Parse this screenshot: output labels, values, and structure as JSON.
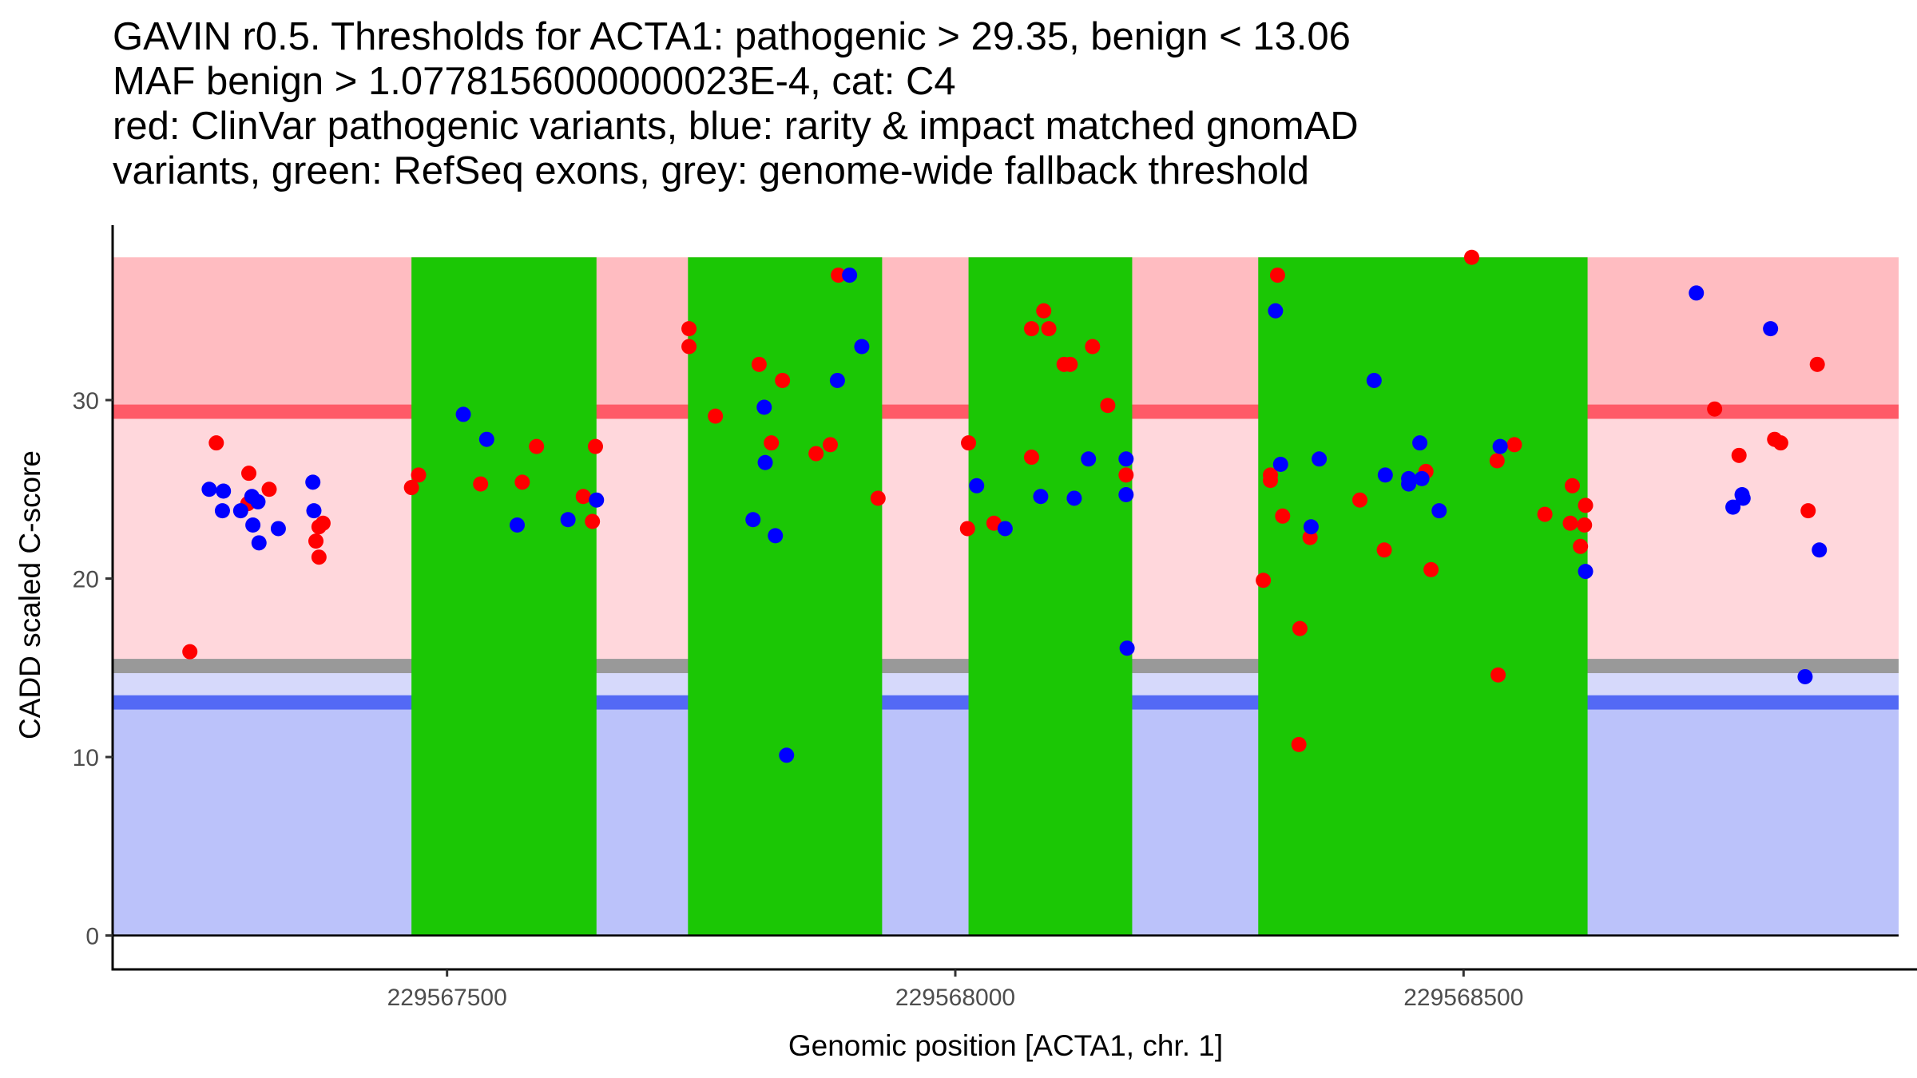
{
  "chart_data": {
    "type": "scatter",
    "title_lines": [
      "GAVIN r0.5. Thresholds for ACTA1: pathogenic > 29.35, benign < 13.06",
      "MAF benign > 1.0778156000000023E-4, cat: C4",
      "red: ClinVar pathogenic variants, blue: rarity & impact matched gnomAD",
      "variants, green: RefSeq exons, grey: genome-wide fallback threshold"
    ],
    "xlabel": "Genomic position [ACTA1, chr. 1]",
    "ylabel": "CADD scaled C-score",
    "xlim": [
      229567171,
      229568928
    ],
    "ylim": [
      -1.9,
      39.8
    ],
    "x_ticks": [
      229567500,
      229568000,
      229568500
    ],
    "x_tick_labels": [
      "229567500",
      "229568000",
      "229568500"
    ],
    "y_ticks": [
      0,
      10,
      20,
      30
    ],
    "y_tick_labels": [
      "0",
      "10",
      "20",
      "30"
    ],
    "grid": false,
    "legend": "none",
    "thresholds": {
      "pathogenic": 29.35,
      "benign": 13.06,
      "genome_wide_fallback": 15.1,
      "region_top": 38.0,
      "region_bottom": 0
    },
    "colors": {
      "pathogenic_region": "#ffbcc1",
      "pathogenic_line": "#ff5a67",
      "vus_region": "#ffd7dc",
      "fallback_line": "#999999",
      "fallback_benign_region": "#d6d9fb",
      "benign_line": "#5369f5",
      "benign_region": "#bbc2fa",
      "exon": "#1bc705",
      "clinvar_point": "#ff0000",
      "gnomad_point": "#0000ff"
    },
    "exons": [
      {
        "start": 229567465,
        "end": 229567647
      },
      {
        "start": 229567737,
        "end": 229567928
      },
      {
        "start": 229568013,
        "end": 229568174
      },
      {
        "start": 229568298,
        "end": 229568622
      }
    ],
    "series": [
      {
        "name": "ClinVar pathogenic variants",
        "color": "#ff0000",
        "points": [
          [
            229567247,
            15.9
          ],
          [
            229567273,
            27.6
          ],
          [
            229567305,
            25.9
          ],
          [
            229567325,
            25.0
          ],
          [
            229567304,
            24.2
          ],
          [
            229567378,
            23.1
          ],
          [
            229567374,
            22.9
          ],
          [
            229567371,
            22.1
          ],
          [
            229567374,
            21.2
          ],
          [
            229567472,
            25.8
          ],
          [
            229567465,
            25.1
          ],
          [
            229567533,
            25.3
          ],
          [
            229567574,
            25.4
          ],
          [
            229567588,
            27.4
          ],
          [
            229567646,
            27.4
          ],
          [
            229567634,
            24.6
          ],
          [
            229567643,
            23.2
          ],
          [
            229567885,
            37.0
          ],
          [
            229567738,
            34.0
          ],
          [
            229567738,
            33.0
          ],
          [
            229567807,
            32.0
          ],
          [
            229567830,
            31.1
          ],
          [
            229567764,
            29.1
          ],
          [
            229567819,
            27.6
          ],
          [
            229567877,
            27.5
          ],
          [
            229567863,
            27.0
          ],
          [
            229567924,
            24.5
          ],
          [
            229568087,
            35.0
          ],
          [
            229568075,
            34.0
          ],
          [
            229568092,
            34.0
          ],
          [
            229568135,
            33.0
          ],
          [
            229568107,
            32.0
          ],
          [
            229568113,
            32.0
          ],
          [
            229568150,
            29.7
          ],
          [
            229568013,
            27.6
          ],
          [
            229568075,
            26.8
          ],
          [
            229568168,
            25.8
          ],
          [
            229568012,
            22.8
          ],
          [
            229568038,
            23.1
          ],
          [
            229568508,
            38.0
          ],
          [
            229568317,
            37.0
          ],
          [
            229568310,
            25.8
          ],
          [
            229568310,
            25.5
          ],
          [
            229568322,
            23.5
          ],
          [
            229568349,
            22.3
          ],
          [
            229568303,
            19.9
          ],
          [
            229568398,
            24.4
          ],
          [
            229568422,
            21.6
          ],
          [
            229568463,
            26.0
          ],
          [
            229568468,
            20.5
          ],
          [
            229568550,
            27.5
          ],
          [
            229568533,
            26.6
          ],
          [
            229568607,
            25.2
          ],
          [
            229568620,
            24.1
          ],
          [
            229568580,
            23.6
          ],
          [
            229568605,
            23.1
          ],
          [
            229568619,
            23.0
          ],
          [
            229568615,
            21.8
          ],
          [
            229568339,
            17.2
          ],
          [
            229568534,
            14.6
          ],
          [
            229568338,
            10.7
          ],
          [
            229568848,
            32.0
          ],
          [
            229568747,
            29.5
          ],
          [
            229568806,
            27.8
          ],
          [
            229568812,
            27.6
          ],
          [
            229568771,
            26.9
          ],
          [
            229568839,
            23.8
          ]
        ]
      },
      {
        "name": "rarity & impact matched gnomAD variants",
        "color": "#0000ff",
        "points": [
          [
            229567266,
            25.0
          ],
          [
            229567280,
            24.9
          ],
          [
            229567308,
            24.6
          ],
          [
            229567314,
            24.3
          ],
          [
            229567279,
            23.8
          ],
          [
            229567297,
            23.8
          ],
          [
            229567309,
            23.0
          ],
          [
            229567334,
            22.8
          ],
          [
            229567315,
            22.0
          ],
          [
            229567368,
            25.4
          ],
          [
            229567369,
            23.8
          ],
          [
            229567516,
            29.2
          ],
          [
            229567539,
            27.8
          ],
          [
            229567569,
            23.0
          ],
          [
            229567619,
            23.3
          ],
          [
            229567647,
            24.4
          ],
          [
            229567896,
            37.0
          ],
          [
            229567908,
            33.0
          ],
          [
            229567884,
            31.1
          ],
          [
            229567812,
            29.6
          ],
          [
            229567813,
            26.5
          ],
          [
            229567801,
            23.3
          ],
          [
            229567823,
            22.4
          ],
          [
            229567834,
            10.1
          ],
          [
            229568021,
            25.2
          ],
          [
            229568049,
            22.8
          ],
          [
            229568084,
            24.6
          ],
          [
            229568117,
            24.5
          ],
          [
            229568131,
            26.7
          ],
          [
            229568168,
            26.7
          ],
          [
            229568168,
            24.7
          ],
          [
            229568169,
            16.1
          ],
          [
            229568315,
            35.0
          ],
          [
            229568412,
            31.1
          ],
          [
            229568320,
            26.4
          ],
          [
            229568358,
            26.7
          ],
          [
            229568457,
            27.6
          ],
          [
            229568536,
            27.4
          ],
          [
            229568423,
            25.8
          ],
          [
            229568446,
            25.6
          ],
          [
            229568446,
            25.3
          ],
          [
            229568459,
            25.6
          ],
          [
            229568476,
            23.8
          ],
          [
            229568350,
            22.9
          ],
          [
            229568620,
            20.4
          ],
          [
            229568729,
            36.0
          ],
          [
            229568802,
            34.0
          ],
          [
            229568774,
            24.7
          ],
          [
            229568775,
            24.5
          ],
          [
            229568765,
            24.0
          ],
          [
            229568850,
            21.6
          ],
          [
            229568836,
            14.5
          ]
        ]
      }
    ]
  }
}
